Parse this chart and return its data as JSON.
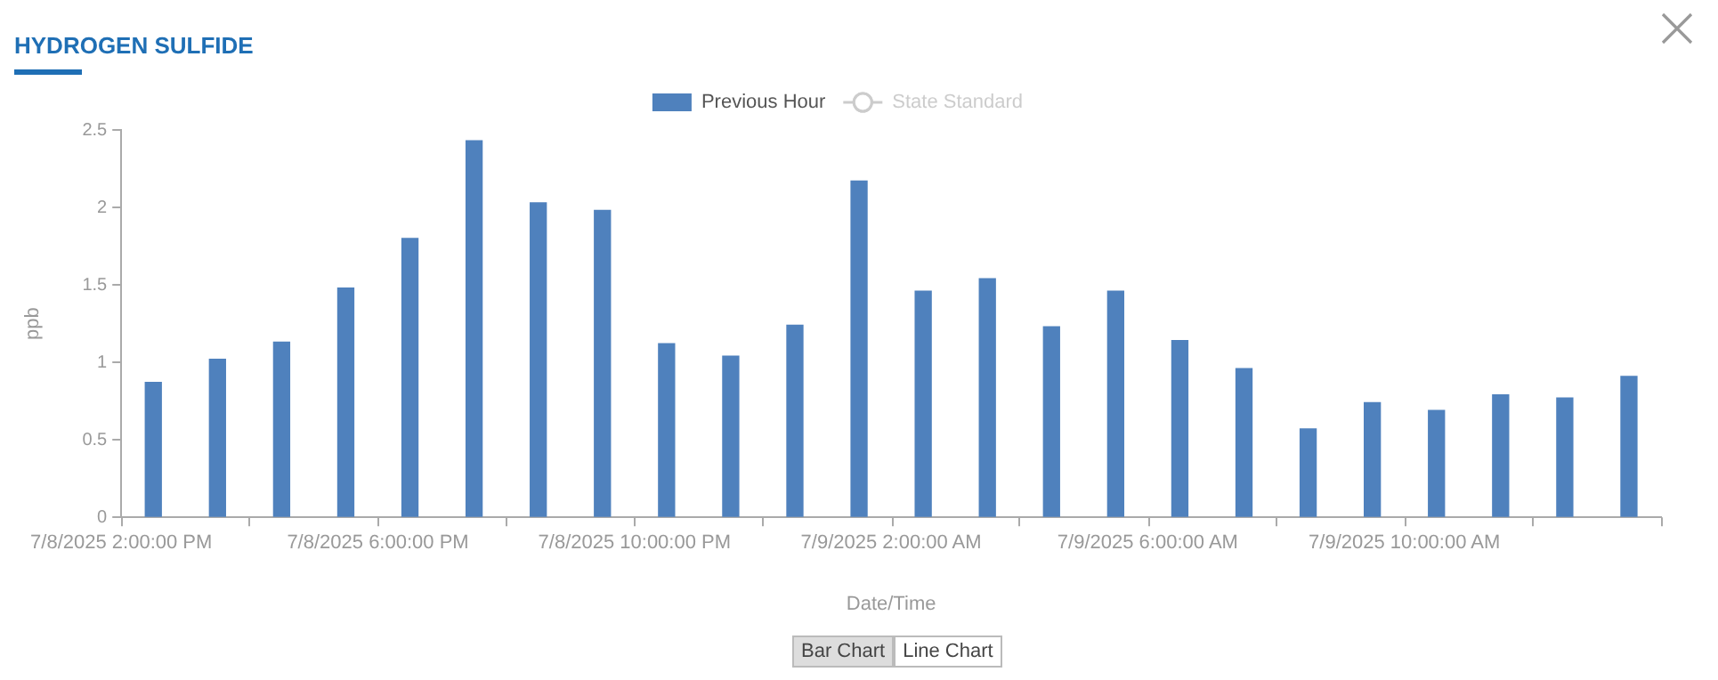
{
  "chart_data": {
    "type": "bar",
    "title": "HYDROGEN SULFIDE",
    "xlabel": "Date/Time",
    "ylabel": "ppb",
    "x": [
      "2025-07-08T14:30",
      "2025-07-08T15:30",
      "2025-07-08T16:30",
      "2025-07-08T17:30",
      "2025-07-08T18:30",
      "2025-07-08T19:30",
      "2025-07-08T20:30",
      "2025-07-08T21:30",
      "2025-07-08T22:30",
      "2025-07-08T23:30",
      "2025-07-09T00:30",
      "2025-07-09T01:30",
      "2025-07-09T02:30",
      "2025-07-09T03:30",
      "2025-07-09T04:30",
      "2025-07-09T05:30",
      "2025-07-09T06:30",
      "2025-07-09T07:30",
      "2025-07-09T08:30",
      "2025-07-09T09:30",
      "2025-07-09T10:30",
      "2025-07-09T11:30",
      "2025-07-09T12:30",
      "2025-07-09T13:30"
    ],
    "series": [
      {
        "name": "Previous Hour",
        "color": "#4f81bd",
        "values": [
          0.87,
          1.02,
          1.13,
          1.48,
          1.8,
          2.43,
          2.03,
          1.98,
          1.12,
          1.04,
          1.24,
          2.17,
          1.46,
          1.54,
          1.23,
          1.46,
          1.14,
          0.96,
          0.57,
          0.74,
          0.69,
          0.79,
          0.77,
          0.91
        ]
      },
      {
        "name": "State Standard",
        "type": "line",
        "marker": "circle",
        "color": "#cccccc",
        "values": [
          null,
          null,
          null,
          null,
          null,
          null,
          null,
          null,
          null,
          null,
          null,
          null,
          null,
          null,
          null,
          null,
          null,
          null,
          null,
          null,
          null,
          null,
          null,
          null
        ]
      }
    ],
    "xlim": [
      "2025-07-08T14:00",
      "2025-07-09T14:00"
    ],
    "xticks": [
      {
        "value": "2025-07-08T14:00",
        "label": "7/8/2025 2:00:00 PM"
      },
      {
        "value": "2025-07-08T18:00",
        "label": "7/8/2025 6:00:00 PM"
      },
      {
        "value": "2025-07-08T22:00",
        "label": "7/8/2025 10:00:00 PM"
      },
      {
        "value": "2025-07-09T02:00",
        "label": "7/9/2025 2:00:00 AM"
      },
      {
        "value": "2025-07-09T06:00",
        "label": "7/9/2025 6:00:00 AM"
      },
      {
        "value": "2025-07-09T10:00",
        "label": "7/9/2025 10:00:00 AM"
      },
      {
        "value": "2025-07-09T14:00",
        "label": null
      }
    ],
    "ylim": [
      0,
      2.5
    ],
    "yticks": [
      0,
      0.5,
      1,
      1.5,
      2,
      2.5
    ],
    "grid": false,
    "legend": "top",
    "annotations": [
      "Bar Chart",
      "Line Chart"
    ]
  }
}
